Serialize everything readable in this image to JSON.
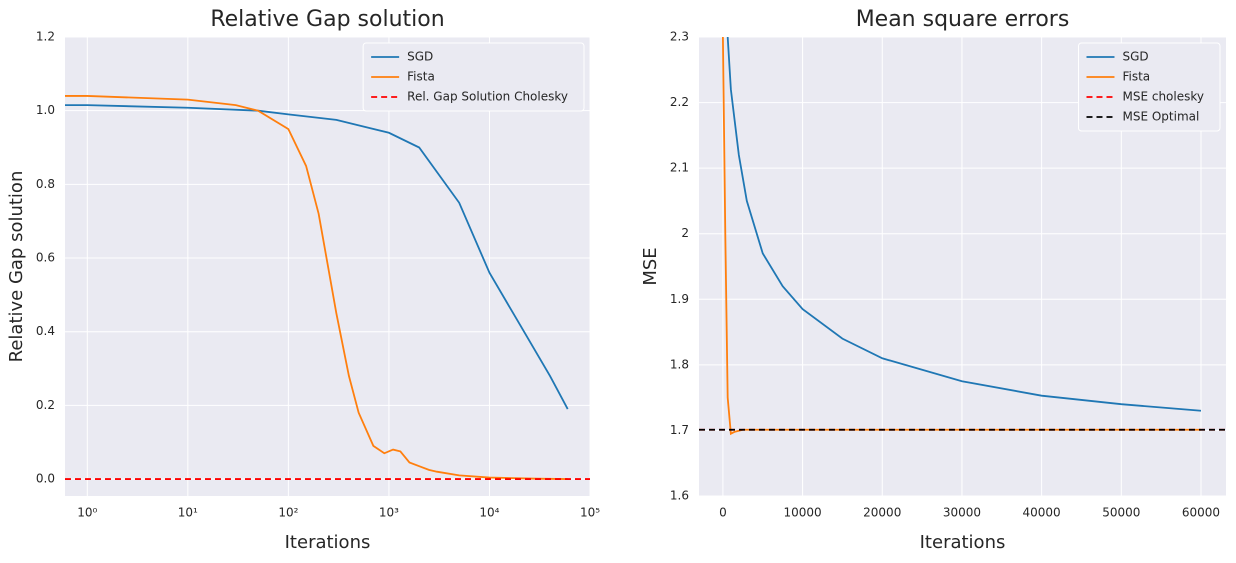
{
  "chart_data": [
    {
      "type": "line",
      "title": "Relative Gap solution",
      "xlabel": "Iterations",
      "ylabel": "Relative Gap solution",
      "xscale": "log",
      "xlim": [
        0.6,
        100000
      ],
      "ylim": [
        -0.046,
        1.2
      ],
      "xticks": [
        {
          "value": 1,
          "label": "10⁰"
        },
        {
          "value": 10,
          "label": "10¹"
        },
        {
          "value": 100,
          "label": "10²"
        },
        {
          "value": 1000,
          "label": "10³"
        },
        {
          "value": 10000,
          "label": "10⁴"
        },
        {
          "value": 100000,
          "label": "10⁵"
        }
      ],
      "yticks": [
        {
          "value": 0,
          "label": "0.0"
        },
        0.2,
        0.4,
        0.6,
        0.8,
        {
          "value": 1,
          "label": "1.0"
        },
        1.2
      ],
      "grid": true,
      "legend": "upper right",
      "series": [
        {
          "name": "SGD",
          "color": "#1f77b4",
          "x": [
            0.6,
            1,
            10,
            50,
            100,
            300,
            1000,
            2000,
            5000,
            10000,
            20000,
            40000,
            60000
          ],
          "values": [
            1.015,
            1.015,
            1.008,
            1.0,
            0.99,
            0.975,
            0.94,
            0.9,
            0.75,
            0.56,
            0.42,
            0.28,
            0.19
          ]
        },
        {
          "name": "Fista",
          "color": "#ff7f0e",
          "x": [
            0.6,
            1,
            10,
            30,
            50,
            100,
            150,
            200,
            300,
            400,
            500,
            700,
            900,
            1100,
            1300,
            1600,
            2000,
            2500,
            3000,
            5000,
            10000,
            30000,
            60000
          ],
          "values": [
            1.04,
            1.04,
            1.03,
            1.015,
            1.0,
            0.95,
            0.85,
            0.72,
            0.45,
            0.28,
            0.18,
            0.09,
            0.07,
            0.08,
            0.075,
            0.045,
            0.035,
            0.025,
            0.02,
            0.01,
            0.004,
            0.001,
            0
          ]
        },
        {
          "name": "Rel. Gap Solution Cholesky",
          "color": "#ff0000",
          "dashed": true,
          "value": 0
        }
      ]
    },
    {
      "type": "line",
      "title": "Mean square errors",
      "xlabel": "Iterations",
      "ylabel": "MSE",
      "xscale": "linear",
      "xlim": [
        -3000,
        63140
      ],
      "ylim": [
        1.6,
        2.3
      ],
      "xticks": [
        0,
        10000,
        20000,
        30000,
        40000,
        50000,
        60000
      ],
      "yticks": [
        1.6,
        1.7,
        1.8,
        1.9,
        2.0,
        2.1,
        2.2,
        2.3
      ],
      "grid": true,
      "legend": "upper right",
      "series": [
        {
          "name": "SGD",
          "color": "#1f77b4",
          "x": [
            600,
            1000,
            2000,
            3000,
            5000,
            7500,
            10000,
            15000,
            20000,
            30000,
            40000,
            50000,
            60000
          ],
          "values": [
            2.3,
            2.22,
            2.12,
            2.05,
            1.97,
            1.92,
            1.885,
            1.84,
            1.81,
            1.775,
            1.753,
            1.74,
            1.73
          ]
        },
        {
          "name": "Fista",
          "color": "#ff7f0e",
          "x": [
            0,
            300,
            600,
            1000,
            1500,
            2500,
            60000
          ],
          "values": [
            2.3,
            2.0,
            1.75,
            1.695,
            1.698,
            1.701,
            1.701
          ]
        },
        {
          "name": "MSE cholesky",
          "color": "#ff0000",
          "dashed": true,
          "value": 1.701
        },
        {
          "name": "MSE Optimal",
          "color": "#000000",
          "dashed": true,
          "value": 1.701
        }
      ]
    }
  ]
}
